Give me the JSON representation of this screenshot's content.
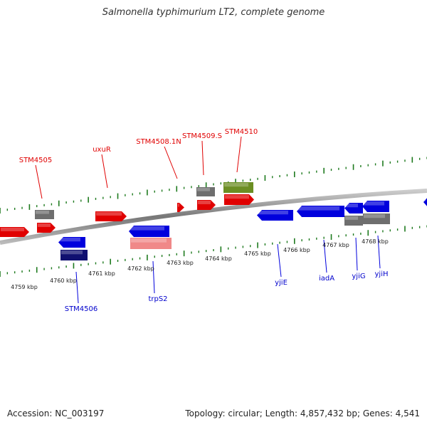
{
  "title": "Salmonella typhimurium LT2, complete genome",
  "footer": {
    "accession": "Accession: NC_003197",
    "summary": "Topology: circular; Length: 4,857,432 bp; Genes: 4,541"
  },
  "colors": {
    "forward": "#e00000",
    "reverse": "#0000dd",
    "dark": "#101070",
    "pink": "#f08888",
    "olive": "#6b8e23",
    "gray": "#6e6e6e",
    "tick": "#1e7a1e",
    "backbone": "#888888"
  },
  "scale": {
    "tick_labels": [
      "4759 kbp",
      "4760 kbp",
      "4761 kbp",
      "4762 kbp",
      "4763 kbp",
      "4764 kbp",
      "4765 kbp",
      "4766 kbp",
      "4767 kbp",
      "4768 kbp"
    ]
  },
  "gene_labels": [
    {
      "name": "STM4505",
      "strand": "forward"
    },
    {
      "name": "uxuR",
      "strand": "forward"
    },
    {
      "name": "STM4508.1N",
      "strand": "forward"
    },
    {
      "name": "STM4509.S",
      "strand": "forward"
    },
    {
      "name": "STM4510",
      "strand": "forward"
    },
    {
      "name": "STM4506",
      "strand": "reverse"
    },
    {
      "name": "trpS2",
      "strand": "reverse"
    },
    {
      "name": "yjiE",
      "strand": "reverse"
    },
    {
      "name": "iadA",
      "strand": "reverse"
    },
    {
      "name": "yjiG",
      "strand": "reverse"
    },
    {
      "name": "yjiH",
      "strand": "reverse"
    }
  ]
}
